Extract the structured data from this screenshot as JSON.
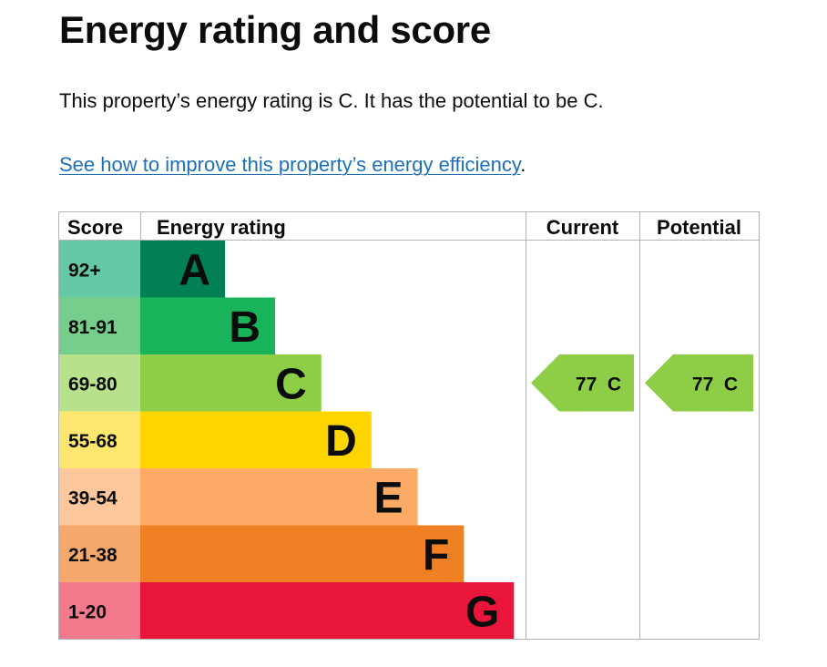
{
  "page": {
    "title": "Energy rating and score",
    "summary": "This property’s energy rating is C. It has the potential to be C.",
    "improve_link": "See how to improve this property’s energy efficiency",
    "improve_suffix": "."
  },
  "table": {
    "headers": {
      "score": "Score",
      "energy_rating": "Energy rating",
      "current": "Current",
      "potential": "Potential"
    },
    "bands": [
      {
        "score": "92+",
        "letter": "A",
        "color": "#008054",
        "light_color": "#64c9a4",
        "bar_fraction": 0.22
      },
      {
        "score": "81-91",
        "letter": "B",
        "color": "#19b459",
        "light_color": "#75ce8b",
        "bar_fraction": 0.35
      },
      {
        "score": "69-80",
        "letter": "C",
        "color": "#8dce46",
        "light_color": "#b8e18c",
        "bar_fraction": 0.47
      },
      {
        "score": "55-68",
        "letter": "D",
        "color": "#ffd500",
        "light_color": "#ffe66f",
        "bar_fraction": 0.6
      },
      {
        "score": "39-54",
        "letter": "E",
        "color": "#fcaa65",
        "light_color": "#fec79b",
        "bar_fraction": 0.72
      },
      {
        "score": "21-38",
        "letter": "F",
        "color": "#ef8023",
        "light_color": "#f5a86b",
        "bar_fraction": 0.84
      },
      {
        "score": "1-20",
        "letter": "G",
        "color": "#e9153b",
        "light_color": "#f37a8d",
        "bar_fraction": 0.97
      }
    ],
    "current": {
      "score": 77,
      "letter": "C",
      "label": "77  C",
      "color": "#8dce46"
    },
    "potential": {
      "score": 77,
      "letter": "C",
      "label": "77  C",
      "color": "#8dce46"
    }
  }
}
